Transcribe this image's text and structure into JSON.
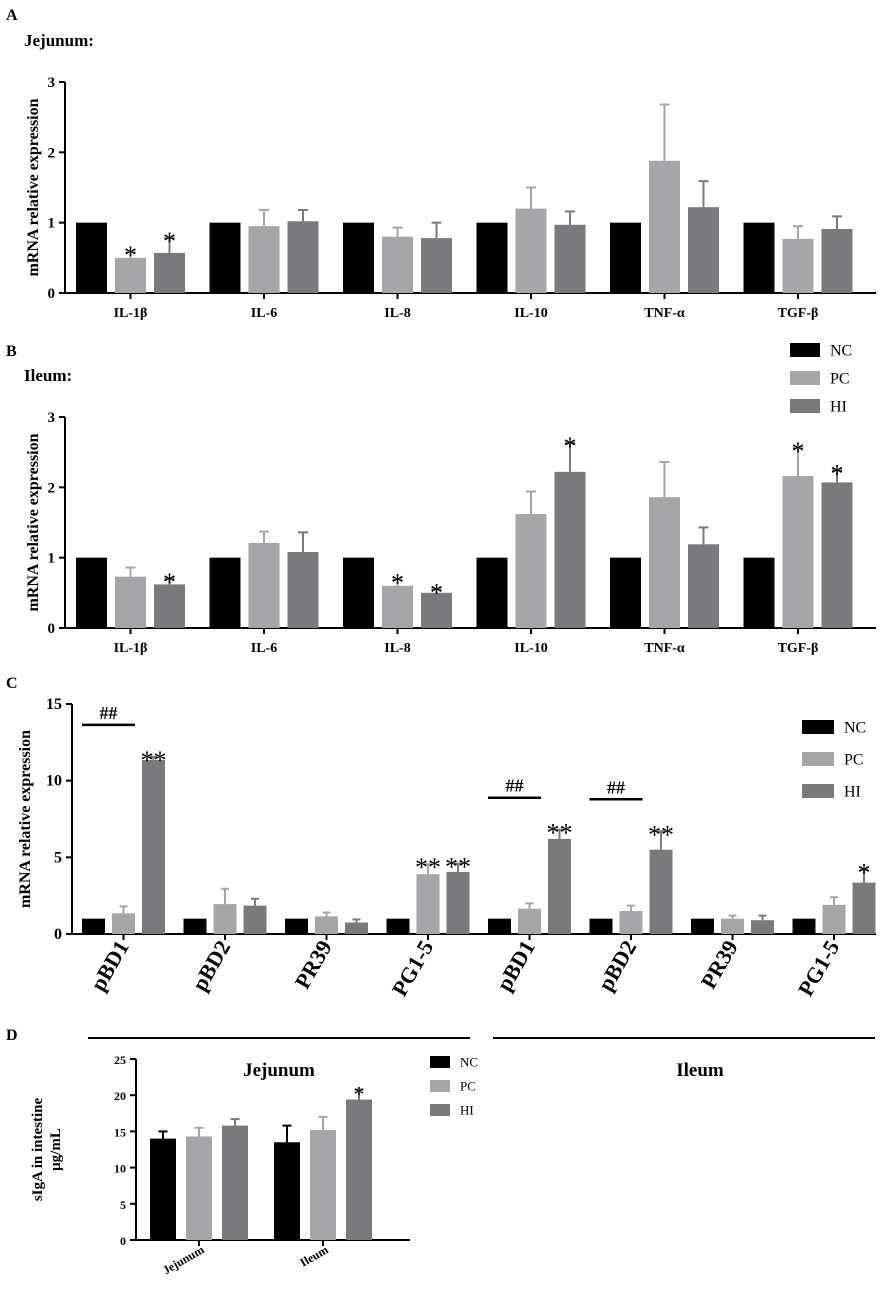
{
  "colors": {
    "NC": "#000000",
    "PC": "#a6a6a8",
    "HI": "#7a7a7c",
    "axis": "#000000"
  },
  "chart_data": [
    {
      "panel": "A",
      "type": "bar",
      "title": "Jejunum:",
      "ylabel": "mRNA relative expression",
      "ylim": [
        0,
        3
      ],
      "yticks": [
        0,
        1,
        2,
        3
      ],
      "categories": [
        "IL-1β",
        "IL-6",
        "IL-8",
        "IL-10",
        "TNF-α",
        "TGF-β"
      ],
      "series": [
        {
          "name": "NC",
          "values": [
            1,
            1,
            1,
            1,
            1,
            1
          ],
          "errors": [
            0,
            0,
            0,
            0,
            0,
            0
          ]
        },
        {
          "name": "PC",
          "values": [
            0.5,
            0.95,
            0.8,
            1.2,
            1.88,
            0.77
          ],
          "errors": [
            0.08,
            0.23,
            0.13,
            0.3,
            0.8,
            0.18
          ]
        },
        {
          "name": "HI",
          "values": [
            0.57,
            1.02,
            0.78,
            0.97,
            1.22,
            0.91
          ],
          "errors": [
            0.21,
            0.16,
            0.22,
            0.19,
            0.37,
            0.18
          ]
        }
      ],
      "annotations": [
        {
          "category": 0,
          "series": 1,
          "text": "*"
        },
        {
          "category": 0,
          "series": 2,
          "text": "*"
        }
      ],
      "legend": null
    },
    {
      "panel": "B",
      "type": "bar",
      "title": "Ileum:",
      "ylabel": "mRNA relative expression",
      "ylim": [
        0,
        3
      ],
      "yticks": [
        0,
        1,
        2,
        3
      ],
      "categories": [
        "IL-1β",
        "IL-6",
        "IL-8",
        "IL-10",
        "TNF-α",
        "TGF-β"
      ],
      "series": [
        {
          "name": "NC",
          "values": [
            1,
            1,
            1,
            1,
            1,
            1
          ],
          "errors": [
            0,
            0,
            0,
            0,
            0,
            0
          ]
        },
        {
          "name": "PC",
          "values": [
            0.73,
            1.21,
            0.6,
            1.62,
            1.86,
            2.16
          ],
          "errors": [
            0.13,
            0.16,
            0.09,
            0.32,
            0.5,
            0.4
          ]
        },
        {
          "name": "HI",
          "values": [
            0.62,
            1.08,
            0.5,
            2.22,
            1.19,
            2.07
          ],
          "errors": [
            0.08,
            0.28,
            0.05,
            0.41,
            0.24,
            0.17
          ]
        }
      ],
      "annotations": [
        {
          "category": 0,
          "series": 2,
          "text": "*"
        },
        {
          "category": 2,
          "series": 1,
          "text": "*"
        },
        {
          "category": 2,
          "series": 2,
          "text": "*"
        },
        {
          "category": 3,
          "series": 2,
          "text": "*"
        },
        {
          "category": 5,
          "series": 1,
          "text": "*"
        },
        {
          "category": 5,
          "series": 2,
          "text": "*"
        }
      ],
      "legend": [
        "NC",
        "PC",
        "HI"
      ]
    },
    {
      "panel": "C",
      "type": "bar",
      "title": "",
      "ylabel": "mRNA relative expression",
      "ylim": [
        0,
        15
      ],
      "yticks": [
        0,
        5,
        10,
        15
      ],
      "categories": [
        "pBD1",
        "pBD2",
        "PR39",
        "PG1-5",
        "pBD1",
        "pBD2",
        "PR39",
        "PG1-5"
      ],
      "groups": [
        {
          "label": "Jejunum",
          "categories": [
            0,
            1,
            2,
            3
          ]
        },
        {
          "label": "Ileum",
          "categories": [
            4,
            5,
            6,
            7
          ]
        }
      ],
      "series": [
        {
          "name": "NC",
          "values": [
            1,
            1,
            1,
            1,
            1,
            1,
            1,
            1
          ],
          "errors": [
            0,
            0,
            0,
            0,
            0,
            0,
            0,
            0
          ]
        },
        {
          "name": "PC",
          "values": [
            1.35,
            1.95,
            1.15,
            3.9,
            1.65,
            1.5,
            1.0,
            1.9
          ],
          "errors": [
            0.45,
            1.0,
            0.25,
            0.65,
            0.35,
            0.35,
            0.2,
            0.5
          ]
        },
        {
          "name": "HI",
          "values": [
            11.35,
            1.85,
            0.75,
            4.05,
            6.2,
            5.5,
            0.9,
            3.35
          ],
          "errors": [
            0.2,
            0.45,
            0.2,
            0.55,
            0.6,
            1.2,
            0.3,
            0.85
          ]
        }
      ],
      "annotations": [
        {
          "category": 0,
          "series": 2,
          "text": "**"
        },
        {
          "category": 3,
          "series": 1,
          "text": "**"
        },
        {
          "category": 3,
          "series": 2,
          "text": "**"
        },
        {
          "category": 4,
          "series": 2,
          "text": "**"
        },
        {
          "category": 5,
          "series": 2,
          "text": "**"
        },
        {
          "category": 7,
          "series": 2,
          "text": "*"
        }
      ],
      "brackets": [
        {
          "category": 0,
          "from_series": 0,
          "to_series": 1,
          "text": "##"
        },
        {
          "category": 4,
          "from_series": 0,
          "to_series": 1,
          "text": "##"
        },
        {
          "category": 5,
          "from_series": 0,
          "to_series": 1,
          "text": "##"
        }
      ],
      "legend": [
        "NC",
        "PC",
        "HI"
      ]
    },
    {
      "panel": "D",
      "type": "bar",
      "title": "",
      "ylabel": "sIgA in intestine",
      "ylabel2": "μg/mL",
      "ylim": [
        0,
        25
      ],
      "yticks": [
        0,
        5,
        10,
        15,
        20,
        25
      ],
      "categories": [
        "Jejunum",
        "Ileum"
      ],
      "series": [
        {
          "name": "NC",
          "values": [
            14.0,
            13.5
          ],
          "errors": [
            1.0,
            2.3
          ]
        },
        {
          "name": "PC",
          "values": [
            14.3,
            15.2
          ],
          "errors": [
            1.2,
            1.8
          ]
        },
        {
          "name": "HI",
          "values": [
            15.8,
            19.4
          ],
          "errors": [
            0.9,
            1.4
          ]
        }
      ],
      "annotations": [
        {
          "category": 1,
          "series": 2,
          "text": "*"
        }
      ],
      "legend": [
        "NC",
        "PC",
        "HI"
      ]
    }
  ]
}
